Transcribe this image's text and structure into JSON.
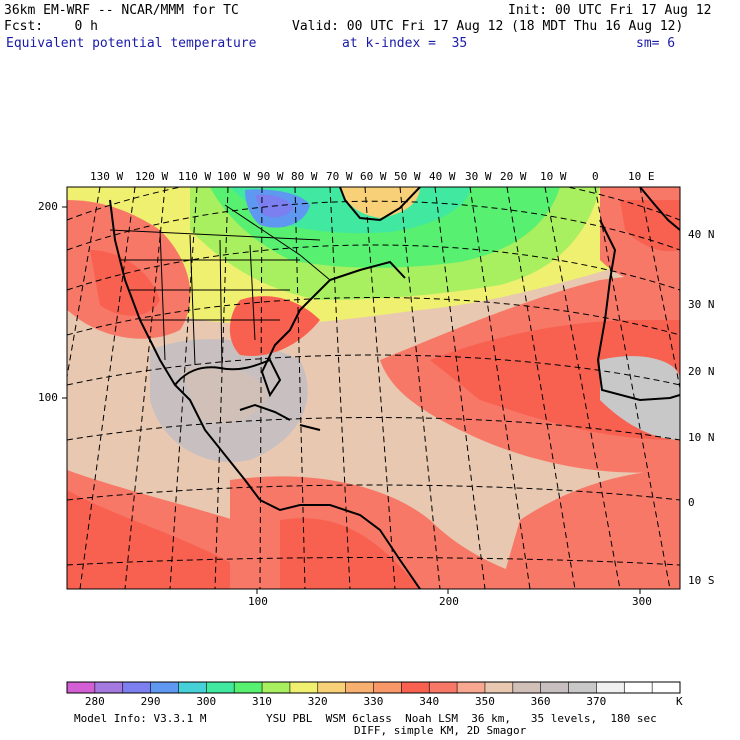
{
  "header": {
    "model": "36km EM-WRF -- NCAR/MMM for TC",
    "init": "Init: 00 UTC Fri 17 Aug 12",
    "fcst": "Fcst:    0 h",
    "valid": "Valid: 00 UTC Fri 17 Aug 12 (18 MDT Thu 16 Aug 12)",
    "field": "Equivalent potential temperature",
    "kindex": "at k-index =  35",
    "sm": "sm= 6"
  },
  "map": {
    "lon_labels": [
      "130 W",
      "120 W",
      "110 W",
      "100 W",
      "90 W",
      "80 W",
      "70 W",
      "60 W",
      "50 W",
      "40 W",
      "30 W",
      "20 W",
      "10 W",
      "0",
      "10 E"
    ],
    "lat_labels": [
      "40 N",
      "30 N",
      "20 N",
      "10 N",
      "0",
      "10 S"
    ],
    "grid_y_labels": [
      "200",
      "100"
    ],
    "grid_x_labels": [
      "100",
      "200",
      "300"
    ]
  },
  "colorbar": {
    "tick_labels": [
      "280",
      "290",
      "300",
      "310",
      "320",
      "330",
      "340",
      "350",
      "360",
      "370"
    ],
    "unit": "K",
    "colors": [
      "#d45fd4",
      "#a57ae0",
      "#7b7ff0",
      "#5f98f0",
      "#46d0d8",
      "#40e8a0",
      "#58f070",
      "#a8f060",
      "#f0f070",
      "#f8d078",
      "#f8b070",
      "#f89868",
      "#f86050",
      "#f87868",
      "#f8a890",
      "#e8c8b0",
      "#d0c0b8",
      "#c8c0c0",
      "#c8c8c8",
      "#f0f0f0",
      "#ffffff",
      "#ffffff"
    ]
  },
  "footer": {
    "model_info": "Model Info: V3.3.1 M",
    "physics": "YSU PBL  WSM 6class  Noah LSM  36 km,   35 levels,  180 sec",
    "diff": "DIFF, simple KM, 2D Smagor"
  }
}
